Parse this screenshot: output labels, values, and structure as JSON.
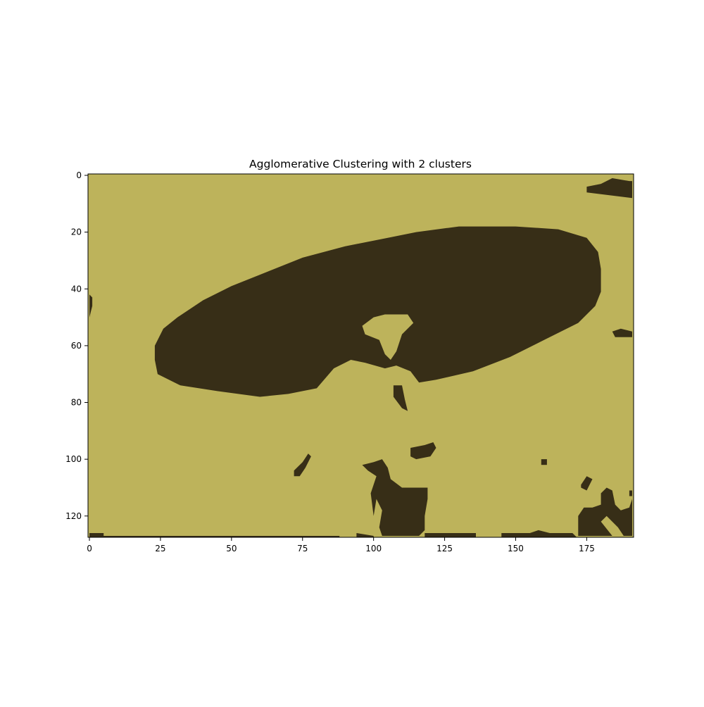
{
  "chart_data": {
    "type": "heatmap",
    "title": "Agglomerative Clustering with 2 clusters",
    "xlabel": "",
    "ylabel": "",
    "grid": false,
    "image_shape": [
      128,
      192
    ],
    "xlim": [
      -0.5,
      191.5
    ],
    "ylim": [
      127.5,
      -0.5
    ],
    "xticks": [
      0,
      25,
      50,
      75,
      100,
      125,
      150,
      175
    ],
    "yticks": [
      0,
      20,
      40,
      60,
      80,
      100,
      120
    ],
    "clusters": [
      {
        "label": 0,
        "color": "#bdb35b"
      },
      {
        "label": 1,
        "color": "#372e17"
      }
    ],
    "background_cluster": 0,
    "regions": [
      {
        "cluster": 1,
        "description": "large ellipse",
        "polygon": [
          [
            23,
            60
          ],
          [
            26,
            54
          ],
          [
            31,
            50
          ],
          [
            40,
            44
          ],
          [
            50,
            39
          ],
          [
            60,
            35
          ],
          [
            75,
            29
          ],
          [
            90,
            25
          ],
          [
            105,
            22
          ],
          [
            115,
            20
          ],
          [
            130,
            18
          ],
          [
            150,
            18
          ],
          [
            165,
            19
          ],
          [
            175,
            22
          ],
          [
            179,
            27
          ],
          [
            180,
            33
          ],
          [
            180,
            41
          ],
          [
            178,
            46
          ],
          [
            172,
            52
          ],
          [
            160,
            58
          ],
          [
            148,
            64
          ],
          [
            135,
            69
          ],
          [
            122,
            72
          ],
          [
            116,
            73
          ],
          [
            113,
            69
          ],
          [
            108,
            67
          ],
          [
            104,
            68
          ],
          [
            97,
            66
          ],
          [
            92,
            65
          ],
          [
            86,
            68
          ],
          [
            80,
            75
          ],
          [
            70,
            77
          ],
          [
            60,
            78
          ],
          [
            45,
            76
          ],
          [
            32,
            74
          ],
          [
            24,
            70
          ],
          [
            23,
            65
          ]
        ]
      },
      {
        "cluster": 0,
        "description": "notch inside ellipse",
        "polygon": [
          [
            96,
            53
          ],
          [
            100,
            50
          ],
          [
            104,
            49
          ],
          [
            112,
            49
          ],
          [
            114,
            52
          ],
          [
            110,
            56
          ],
          [
            108,
            62
          ],
          [
            106,
            65
          ],
          [
            104,
            63
          ],
          [
            102,
            58
          ],
          [
            97,
            56
          ]
        ]
      },
      {
        "cluster": 1,
        "description": "top-right bar",
        "polygon": [
          [
            175,
            4
          ],
          [
            180,
            3
          ],
          [
            184,
            1
          ],
          [
            190,
            2
          ],
          [
            191,
            2
          ],
          [
            191,
            8
          ],
          [
            183,
            7
          ],
          [
            175,
            6
          ]
        ]
      },
      {
        "cluster": 1,
        "description": "left edge spot",
        "polygon": [
          [
            0,
            42
          ],
          [
            1,
            43
          ],
          [
            1,
            46
          ],
          [
            0,
            50
          ]
        ]
      },
      {
        "cluster": 1,
        "description": "right edge spot",
        "polygon": [
          [
            184,
            55
          ],
          [
            187,
            54
          ],
          [
            191,
            55
          ],
          [
            191,
            57
          ],
          [
            185,
            57
          ]
        ]
      },
      {
        "cluster": 1,
        "description": "small blob",
        "polygon": [
          [
            107,
            74
          ],
          [
            110,
            74
          ],
          [
            111,
            79
          ],
          [
            112,
            83
          ],
          [
            110,
            82
          ],
          [
            107,
            78
          ]
        ]
      },
      {
        "cluster": 1,
        "description": "small blob",
        "polygon": [
          [
            113,
            96
          ],
          [
            118,
            95
          ],
          [
            121,
            94
          ],
          [
            122,
            96
          ],
          [
            120,
            99
          ],
          [
            115,
            100
          ],
          [
            113,
            99
          ]
        ]
      },
      {
        "cluster": 1,
        "description": "small blob",
        "polygon": [
          [
            72,
            104
          ],
          [
            75,
            101
          ],
          [
            77,
            98
          ],
          [
            78,
            99
          ],
          [
            76,
            103
          ],
          [
            74,
            106
          ],
          [
            72,
            106
          ]
        ]
      },
      {
        "cluster": 1,
        "description": "pixel",
        "polygon": [
          [
            159,
            100
          ],
          [
            161,
            100
          ],
          [
            161,
            102
          ],
          [
            159,
            102
          ]
        ]
      },
      {
        "cluster": 1,
        "description": "vertical blob",
        "polygon": [
          [
            96,
            102
          ],
          [
            100,
            101
          ],
          [
            103,
            100
          ],
          [
            105,
            103
          ],
          [
            106,
            107
          ],
          [
            110,
            110
          ],
          [
            115,
            110
          ],
          [
            119,
            110
          ],
          [
            119,
            114
          ],
          [
            118,
            120
          ],
          [
            118,
            125
          ],
          [
            116,
            127
          ],
          [
            107,
            127
          ],
          [
            103,
            127
          ],
          [
            102,
            124
          ],
          [
            103,
            118
          ],
          [
            101,
            114
          ],
          [
            100,
            120
          ],
          [
            99,
            112
          ],
          [
            101,
            106
          ],
          [
            98,
            104
          ]
        ]
      },
      {
        "cluster": 1,
        "description": "right lower blob",
        "polygon": [
          [
            173,
            109
          ],
          [
            175,
            106
          ],
          [
            177,
            107
          ],
          [
            175,
            111
          ],
          [
            173,
            110
          ]
        ]
      },
      {
        "cluster": 1,
        "description": "right lower cluster",
        "polygon": [
          [
            172,
            120
          ],
          [
            174,
            117
          ],
          [
            177,
            117
          ],
          [
            180,
            116
          ],
          [
            180,
            112
          ],
          [
            182,
            110
          ],
          [
            184,
            111
          ],
          [
            185,
            116
          ],
          [
            187,
            118
          ],
          [
            190,
            117
          ],
          [
            191,
            114
          ],
          [
            191,
            127
          ],
          [
            188,
            127
          ],
          [
            186,
            124
          ],
          [
            182,
            120
          ],
          [
            180,
            122
          ],
          [
            184,
            127
          ],
          [
            172,
            127
          ]
        ]
      },
      {
        "cluster": 1,
        "description": "right edge notch",
        "polygon": [
          [
            190,
            111
          ],
          [
            191,
            111
          ],
          [
            191,
            113
          ],
          [
            190,
            113
          ]
        ]
      },
      {
        "cluster": 1,
        "description": "bottom strip left",
        "polygon": [
          [
            0,
            126
          ],
          [
            5,
            126
          ],
          [
            5,
            127
          ],
          [
            0,
            127
          ]
        ]
      },
      {
        "cluster": 1,
        "description": "bottom strip",
        "polygon": [
          [
            0,
            127
          ],
          [
            88,
            127
          ],
          [
            88,
            128
          ],
          [
            0,
            128
          ]
        ]
      },
      {
        "cluster": 1,
        "description": "bottom strip middle",
        "polygon": [
          [
            94,
            126
          ],
          [
            100,
            127
          ],
          [
            100,
            128
          ],
          [
            94,
            128
          ]
        ]
      },
      {
        "cluster": 1,
        "description": "bottom strip right",
        "polygon": [
          [
            118,
            126
          ],
          [
            136,
            126
          ],
          [
            136,
            128
          ],
          [
            118,
            128
          ]
        ]
      },
      {
        "cluster": 1,
        "description": "bottom strip right",
        "polygon": [
          [
            145,
            126
          ],
          [
            155,
            126
          ],
          [
            158,
            125
          ],
          [
            162,
            126
          ],
          [
            170,
            126
          ],
          [
            172,
            128
          ],
          [
            145,
            128
          ]
        ]
      }
    ]
  }
}
